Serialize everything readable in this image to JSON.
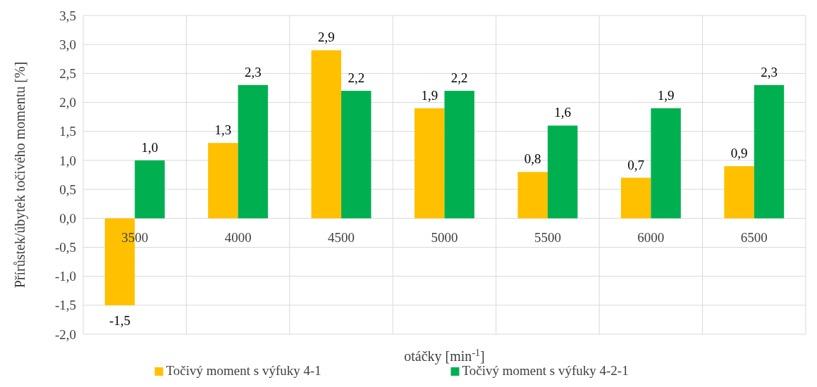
{
  "chart_data": {
    "type": "bar",
    "xlabel": "otáčky [min$^{-1}$]",
    "ylabel": "Přírůstek/úbytek točivého momentu [%]",
    "categories": [
      "3500",
      "4000",
      "4500",
      "5000",
      "5500",
      "6000",
      "6500"
    ],
    "series": [
      {
        "name": "Točivý moment s výfuky 4-1",
        "color": "#ffc000",
        "values": [
          -1.5,
          1.3,
          2.9,
          1.9,
          0.8,
          0.7,
          0.9
        ],
        "value_labels": [
          "-1,5",
          "1,3",
          "2,9",
          "1,9",
          "0,8",
          "0,7",
          "0,9"
        ]
      },
      {
        "name": "Točivý moment s výfuky 4-2-1",
        "color": "#00b050",
        "values": [
          1.0,
          2.3,
          2.2,
          2.2,
          1.6,
          1.9,
          2.3
        ],
        "value_labels": [
          "1,0",
          "2,3",
          "2,2",
          "2,2",
          "1,6",
          "1,9",
          "2,3"
        ]
      }
    ],
    "ylim": [
      -2,
      3.5
    ],
    "yticks": [
      {
        "value": -2,
        "label": "-2,0"
      },
      {
        "value": -1.5,
        "label": "-1,5"
      },
      {
        "value": -1,
        "label": "-1,0"
      },
      {
        "value": -0.5,
        "label": "-0,5"
      },
      {
        "value": 0,
        "label": "0,0"
      },
      {
        "value": 0.5,
        "label": "0,5"
      },
      {
        "value": 1,
        "label": "1,0"
      },
      {
        "value": 1.5,
        "label": "1,5"
      },
      {
        "value": 2,
        "label": "2,0"
      },
      {
        "value": 2.5,
        "label": "2,5"
      },
      {
        "value": 3,
        "label": "3,0"
      },
      {
        "value": 3.5,
        "label": "3,5"
      }
    ],
    "grid": true,
    "legend": "bottom"
  }
}
